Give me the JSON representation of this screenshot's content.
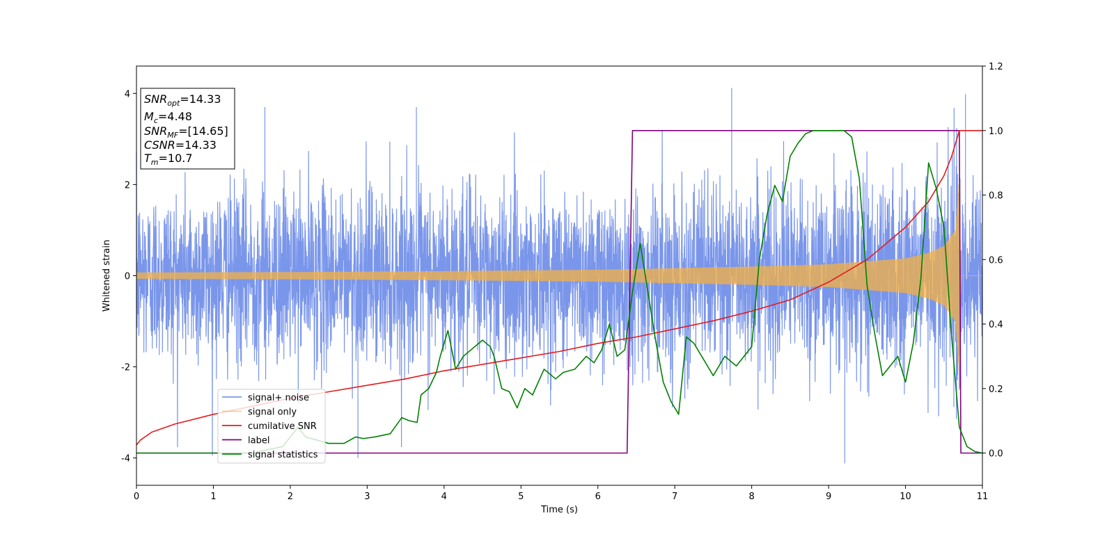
{
  "chart_data": {
    "type": "line",
    "xlabel": "Time (s)",
    "ylabel": "Whitened strain",
    "xlim": [
      0,
      11
    ],
    "ylim": [
      -4.6,
      4.6
    ],
    "y2lim": [
      -0.1,
      1.2
    ],
    "x_ticks": [
      "0",
      "1",
      "2",
      "3",
      "4",
      "5",
      "6",
      "7",
      "8",
      "9",
      "10",
      "11"
    ],
    "y_ticks": [
      "-4",
      "-2",
      "0",
      "2",
      "4"
    ],
    "y2_ticks": [
      "0.0",
      "0.2",
      "0.4",
      "0.6",
      "0.8",
      "1.0",
      "1.2"
    ],
    "grid": false,
    "legend_position": "lower-left",
    "annotation": {
      "lines": [
        {
          "base": "SNR",
          "sub": "opt",
          "rest": "=14.33"
        },
        {
          "base": "M",
          "sub": "c",
          "rest": "=4.48"
        },
        {
          "base": "SNR",
          "sub": "MF",
          "rest": "=[14.65]"
        },
        {
          "base": "CSNR",
          "sub": "",
          "rest": "=14.33"
        },
        {
          "base": "T",
          "sub": "m",
          "rest": "=10.7"
        }
      ]
    },
    "series": [
      {
        "name": "signal+ noise",
        "color": "#4169E1",
        "axis": "left",
        "style": "noise",
        "noise_std": 0.95,
        "notable_peaks": [
          {
            "x": 7.74,
            "y": 4.12
          },
          {
            "x": 10.78,
            "y": 3.98
          },
          {
            "x": 9.21,
            "y": -4.12
          },
          {
            "x": 2.88,
            "y": -4.0
          },
          {
            "x": 1.67,
            "y": 3.7
          },
          {
            "x": 3.64,
            "y": 3.7
          }
        ]
      },
      {
        "name": "signal only",
        "color": "#F5B041",
        "axis": "left",
        "style": "chirp",
        "amp_points": [
          [
            0,
            0.07
          ],
          [
            2,
            0.08
          ],
          [
            4,
            0.1
          ],
          [
            6,
            0.13
          ],
          [
            8,
            0.2
          ],
          [
            9,
            0.25
          ],
          [
            10,
            0.38
          ],
          [
            10.3,
            0.5
          ],
          [
            10.5,
            0.65
          ],
          [
            10.65,
            1.0
          ],
          [
            10.7,
            2.2
          ],
          [
            10.72,
            0
          ]
        ]
      },
      {
        "name": "cumilative SNR",
        "color": "#E41A1C",
        "axis": "right",
        "x": [
          0,
          0.05,
          0.2,
          0.5,
          1,
          1.5,
          2,
          2.5,
          3,
          3.5,
          4,
          4.5,
          5,
          5.5,
          6,
          6.5,
          7,
          7.5,
          8,
          8.5,
          9,
          9.5,
          10,
          10.3,
          10.5,
          10.6,
          10.7,
          11
        ],
        "values": [
          0.025,
          0.04,
          0.065,
          0.09,
          0.12,
          0.145,
          0.17,
          0.19,
          0.21,
          0.23,
          0.255,
          0.275,
          0.295,
          0.315,
          0.34,
          0.36,
          0.385,
          0.41,
          0.44,
          0.475,
          0.53,
          0.6,
          0.7,
          0.78,
          0.86,
          0.92,
          1.0,
          1.0
        ]
      },
      {
        "name": "label",
        "color": "#800080",
        "axis": "right",
        "x": [
          0,
          6.38,
          6.45,
          10.7,
          10.72,
          11
        ],
        "values": [
          0,
          0,
          1,
          1,
          0,
          0
        ]
      },
      {
        "name": "signal statistics",
        "color": "#008000",
        "axis": "right",
        "x": [
          0,
          0.5,
          1.0,
          1.5,
          1.9,
          2.1,
          2.2,
          2.35,
          2.5,
          2.7,
          2.85,
          2.95,
          3.1,
          3.3,
          3.45,
          3.55,
          3.65,
          3.7,
          3.8,
          3.9,
          3.95,
          4.05,
          4.15,
          4.25,
          4.35,
          4.4,
          4.5,
          4.6,
          4.65,
          4.75,
          4.85,
          4.95,
          5.05,
          5.15,
          5.3,
          5.45,
          5.55,
          5.7,
          5.85,
          5.95,
          6.05,
          6.15,
          6.25,
          6.35,
          6.45,
          6.55,
          6.65,
          6.75,
          6.85,
          6.95,
          7.05,
          7.15,
          7.25,
          7.35,
          7.5,
          7.65,
          7.8,
          7.9,
          8.0,
          8.1,
          8.2,
          8.3,
          8.4,
          8.5,
          8.6,
          8.7,
          8.8,
          8.9,
          9.0,
          9.1,
          9.2,
          9.3,
          9.4,
          9.5,
          9.6,
          9.7,
          9.8,
          9.9,
          10.0,
          10.1,
          10.2,
          10.3,
          10.4,
          10.5,
          10.6,
          10.7,
          10.8,
          10.9,
          11.0
        ],
        "values": [
          0.0,
          0.0,
          0.0,
          0.0,
          0.02,
          0.08,
          0.05,
          0.04,
          0.03,
          0.03,
          0.05,
          0.045,
          0.05,
          0.06,
          0.11,
          0.1,
          0.095,
          0.18,
          0.2,
          0.25,
          0.3,
          0.38,
          0.26,
          0.3,
          0.32,
          0.33,
          0.35,
          0.33,
          0.3,
          0.2,
          0.19,
          0.14,
          0.2,
          0.18,
          0.26,
          0.23,
          0.25,
          0.26,
          0.3,
          0.28,
          0.32,
          0.4,
          0.3,
          0.32,
          0.5,
          0.65,
          0.5,
          0.35,
          0.22,
          0.16,
          0.12,
          0.36,
          0.34,
          0.3,
          0.24,
          0.3,
          0.27,
          0.3,
          0.33,
          0.6,
          0.74,
          0.83,
          0.78,
          0.92,
          0.96,
          0.99,
          1.0,
          1.0,
          1.0,
          1.0,
          1.0,
          0.98,
          0.85,
          0.52,
          0.37,
          0.24,
          0.27,
          0.3,
          0.22,
          0.34,
          0.54,
          0.9,
          0.82,
          0.7,
          0.36,
          0.08,
          0.02,
          0.005,
          0.0
        ]
      }
    ]
  }
}
